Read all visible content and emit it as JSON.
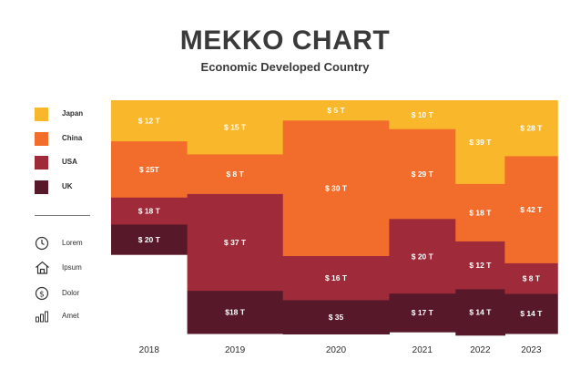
{
  "chart_data": {
    "type": "bar",
    "title": "MEKKO CHART",
    "subtitle": "Economic Developed Country",
    "categories": [
      "2018",
      "2019",
      "2020",
      "2021",
      "2022",
      "2023"
    ],
    "series": [
      {
        "name": "Japan",
        "color": "#f9b72c",
        "labels": [
          "$ 12 T",
          "$ 15 T",
          "$ 5 T",
          "$ 10 T",
          "$ 39 T",
          "$ 28 T"
        ]
      },
      {
        "name": "China",
        "color": "#f26d2b",
        "labels": [
          "$ 25T",
          "$ 8 T",
          "$ 30 T",
          "$ 29 T",
          "$ 18 T",
          "$ 42 T"
        ]
      },
      {
        "name": "USA",
        "color": "#9e2a3a",
        "labels": [
          "$ 18 T",
          "$ 37 T",
          "$ 16 T",
          "$ 20 T",
          "$ 12 T",
          "$ 8 T"
        ]
      },
      {
        "name": "UK",
        "color": "#57192a",
        "labels": [
          "$ 20 T",
          "$18 T",
          "$ 35",
          "$ 17 T",
          "$ 14 T",
          "$ 14 T"
        ]
      }
    ],
    "column_width_share": [
      0.179,
      0.225,
      0.25,
      0.156,
      0.116,
      0.124
    ],
    "segment_share": [
      [
        0.176,
        0.241,
        0.116,
        0.128
      ],
      [
        0.232,
        0.17,
        0.415,
        0.183
      ],
      [
        0.087,
        0.581,
        0.189,
        0.145
      ],
      [
        0.124,
        0.385,
        0.32,
        0.164
      ],
      [
        0.359,
        0.246,
        0.205,
        0.197
      ],
      [
        0.24,
        0.459,
        0.131,
        0.17
      ]
    ],
    "legend_position": "left"
  },
  "side_items": [
    {
      "label": "Lorem",
      "icon": "clock-icon"
    },
    {
      "label": "Ipsum",
      "icon": "home-icon"
    },
    {
      "label": "Dolor",
      "icon": "dollar-icon"
    },
    {
      "label": "Amet",
      "icon": "bar-chart-icon"
    }
  ]
}
